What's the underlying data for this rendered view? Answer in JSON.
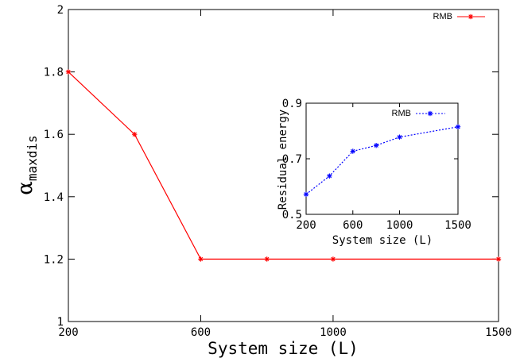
{
  "chart_data": [
    {
      "type": "line",
      "xlabel": "System size (L)",
      "ylabel_main": "α",
      "ylabel_sub": "maxdis",
      "x_ticks": [
        200,
        600,
        1000,
        1500
      ],
      "y_ticks": [
        "1",
        "1.2",
        "1.4",
        "1.6",
        "1.8",
        "2"
      ],
      "xlim": [
        200,
        1500
      ],
      "ylim": [
        1,
        2
      ],
      "grid": false,
      "legend_position": "top-right",
      "series": [
        {
          "name": "RMB",
          "color": "#ff0000",
          "line_style": "solid",
          "marker": "asterisk",
          "x": [
            200,
            400,
            600,
            800,
            1000,
            1500
          ],
          "y": [
            1.8,
            1.6,
            1.2,
            1.2,
            1.2,
            1.2
          ]
        }
      ]
    },
    {
      "type": "line",
      "xlabel": "System size (L)",
      "ylabel": "Residual energy",
      "x_ticks": [
        200,
        600,
        1000,
        1500
      ],
      "y_ticks": [
        "0.5",
        "0.7",
        "0.9"
      ],
      "xlim": [
        200,
        1500
      ],
      "ylim": [
        0.5,
        0.9
      ],
      "grid": false,
      "legend_position": "top-left",
      "series": [
        {
          "name": "RMB",
          "color": "#0000ff",
          "line_style": "dotted",
          "marker": "asterisk",
          "x": [
            200,
            400,
            600,
            800,
            1000,
            1500
          ],
          "y": [
            0.572,
            0.638,
            0.727,
            0.748,
            0.778,
            0.815
          ]
        }
      ]
    }
  ]
}
